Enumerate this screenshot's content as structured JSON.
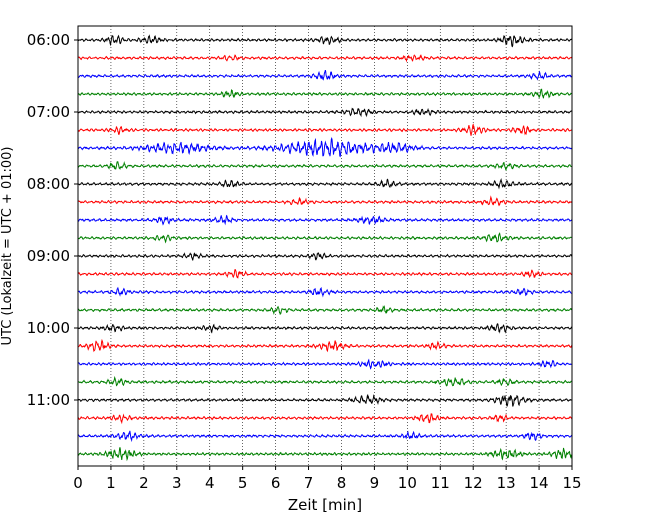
{
  "chart_data": {
    "type": "line",
    "title": "",
    "xlabel": "Zeit  [min]",
    "ylabel": "UTC (Lokalzeit = UTC + 01:00)",
    "xlim": [
      0,
      15
    ],
    "x_ticks": [
      "0",
      "1",
      "2",
      "3",
      "4",
      "5",
      "6",
      "7",
      "8",
      "9",
      "10",
      "11",
      "12",
      "13",
      "14",
      "15"
    ],
    "y_ticks": [
      {
        "label": "06:00",
        "row": 0
      },
      {
        "label": "07:00",
        "row": 4
      },
      {
        "label": "08:00",
        "row": 8
      },
      {
        "label": "09:00",
        "row": 12
      },
      {
        "label": "10:00",
        "row": 16
      },
      {
        "label": "11:00",
        "row": 20
      }
    ],
    "row_duration_min": 15,
    "grid": "vertical-dotted",
    "trace_colors": [
      "#000000",
      "#ff0000",
      "#0000ff",
      "#008000"
    ],
    "traces": [
      {
        "start": "06:00",
        "color": "#000000",
        "events": [
          {
            "t": 1.1,
            "amp": 0.45,
            "dur": 0.5
          },
          {
            "t": 2.2,
            "amp": 0.35,
            "dur": 0.6
          },
          {
            "t": 7.6,
            "amp": 0.35,
            "dur": 0.6
          },
          {
            "t": 13.2,
            "amp": 0.55,
            "dur": 0.7
          }
        ]
      },
      {
        "start": "06:15",
        "color": "#ff0000",
        "events": [
          {
            "t": 4.6,
            "amp": 0.25,
            "dur": 0.5
          },
          {
            "t": 10.2,
            "amp": 0.25,
            "dur": 0.6
          }
        ]
      },
      {
        "start": "06:30",
        "color": "#0000ff",
        "events": [
          {
            "t": 7.5,
            "amp": 0.45,
            "dur": 0.6
          },
          {
            "t": 14.0,
            "amp": 0.3,
            "dur": 0.5
          }
        ]
      },
      {
        "start": "06:45",
        "color": "#008000",
        "events": [
          {
            "t": 4.6,
            "amp": 0.3,
            "dur": 0.5
          },
          {
            "t": 14.1,
            "amp": 0.35,
            "dur": 0.6
          }
        ]
      },
      {
        "start": "07:00",
        "color": "#000000",
        "events": [
          {
            "t": 8.5,
            "amp": 0.35,
            "dur": 0.8
          },
          {
            "t": 10.5,
            "amp": 0.3,
            "dur": 0.6
          }
        ]
      },
      {
        "start": "07:15",
        "color": "#ff0000",
        "events": [
          {
            "t": 1.2,
            "amp": 0.3,
            "dur": 0.5
          },
          {
            "t": 12.0,
            "amp": 0.5,
            "dur": 0.6
          },
          {
            "t": 13.5,
            "amp": 0.4,
            "dur": 0.5
          }
        ]
      },
      {
        "start": "07:30",
        "color": "#0000ff",
        "events": [
          {
            "t": 3.0,
            "amp": 0.5,
            "dur": 2.0
          },
          {
            "t": 7.5,
            "amp": 0.9,
            "dur": 2.5
          },
          {
            "t": 9.6,
            "amp": 0.5,
            "dur": 1.2
          }
        ]
      },
      {
        "start": "07:45",
        "color": "#008000",
        "events": [
          {
            "t": 1.2,
            "amp": 0.35,
            "dur": 0.5
          },
          {
            "t": 13.0,
            "amp": 0.3,
            "dur": 0.6
          }
        ]
      },
      {
        "start": "08:00",
        "color": "#000000",
        "events": [
          {
            "t": 4.6,
            "amp": 0.35,
            "dur": 0.5
          },
          {
            "t": 9.4,
            "amp": 0.35,
            "dur": 0.5
          },
          {
            "t": 12.9,
            "amp": 0.4,
            "dur": 0.6
          }
        ]
      },
      {
        "start": "08:15",
        "color": "#ff0000",
        "events": [
          {
            "t": 6.7,
            "amp": 0.25,
            "dur": 0.6
          },
          {
            "t": 12.6,
            "amp": 0.35,
            "dur": 0.6
          }
        ]
      },
      {
        "start": "08:30",
        "color": "#0000ff",
        "events": [
          {
            "t": 2.6,
            "amp": 0.35,
            "dur": 0.5
          },
          {
            "t": 4.4,
            "amp": 0.4,
            "dur": 0.5
          },
          {
            "t": 8.9,
            "amp": 0.35,
            "dur": 0.8
          }
        ]
      },
      {
        "start": "08:45",
        "color": "#008000",
        "events": [
          {
            "t": 2.6,
            "amp": 0.35,
            "dur": 0.5
          },
          {
            "t": 12.7,
            "amp": 0.4,
            "dur": 0.7
          }
        ]
      },
      {
        "start": "09:00",
        "color": "#000000",
        "events": [
          {
            "t": 3.5,
            "amp": 0.3,
            "dur": 0.5
          },
          {
            "t": 7.3,
            "amp": 0.3,
            "dur": 0.5
          }
        ]
      },
      {
        "start": "09:15",
        "color": "#ff0000",
        "events": [
          {
            "t": 4.8,
            "amp": 0.35,
            "dur": 0.5
          },
          {
            "t": 13.8,
            "amp": 0.35,
            "dur": 0.5
          }
        ]
      },
      {
        "start": "09:30",
        "color": "#0000ff",
        "events": [
          {
            "t": 1.3,
            "amp": 0.3,
            "dur": 0.5
          },
          {
            "t": 7.3,
            "amp": 0.35,
            "dur": 0.6
          },
          {
            "t": 13.5,
            "amp": 0.3,
            "dur": 0.5
          }
        ]
      },
      {
        "start": "09:45",
        "color": "#008000",
        "events": [
          {
            "t": 6.1,
            "amp": 0.35,
            "dur": 0.5
          },
          {
            "t": 9.3,
            "amp": 0.3,
            "dur": 0.5
          }
        ]
      },
      {
        "start": "10:00",
        "color": "#000000",
        "events": [
          {
            "t": 1.1,
            "amp": 0.35,
            "dur": 0.5
          },
          {
            "t": 4.0,
            "amp": 0.3,
            "dur": 0.5
          },
          {
            "t": 12.8,
            "amp": 0.4,
            "dur": 0.6
          }
        ]
      },
      {
        "start": "10:15",
        "color": "#ff0000",
        "events": [
          {
            "t": 0.6,
            "amp": 0.55,
            "dur": 0.6
          },
          {
            "t": 7.7,
            "amp": 0.45,
            "dur": 0.8
          },
          {
            "t": 10.9,
            "amp": 0.35,
            "dur": 0.5
          }
        ]
      },
      {
        "start": "10:30",
        "color": "#0000ff",
        "events": [
          {
            "t": 9.0,
            "amp": 0.35,
            "dur": 0.8
          },
          {
            "t": 14.3,
            "amp": 0.3,
            "dur": 0.5
          }
        ]
      },
      {
        "start": "10:45",
        "color": "#008000",
        "events": [
          {
            "t": 1.2,
            "amp": 0.35,
            "dur": 0.5
          },
          {
            "t": 11.4,
            "amp": 0.35,
            "dur": 0.8
          },
          {
            "t": 13.0,
            "amp": 0.3,
            "dur": 0.5
          }
        ]
      },
      {
        "start": "11:00",
        "color": "#000000",
        "events": [
          {
            "t": 8.8,
            "amp": 0.4,
            "dur": 0.8
          },
          {
            "t": 13.1,
            "amp": 0.65,
            "dur": 0.8
          }
        ]
      },
      {
        "start": "11:15",
        "color": "#ff0000",
        "events": [
          {
            "t": 1.3,
            "amp": 0.3,
            "dur": 0.5
          },
          {
            "t": 10.6,
            "amp": 0.45,
            "dur": 0.6
          },
          {
            "t": 12.8,
            "amp": 0.3,
            "dur": 0.5
          }
        ]
      },
      {
        "start": "11:30",
        "color": "#0000ff",
        "events": [
          {
            "t": 1.5,
            "amp": 0.45,
            "dur": 0.6
          },
          {
            "t": 10.1,
            "amp": 0.3,
            "dur": 0.5
          },
          {
            "t": 13.8,
            "amp": 0.35,
            "dur": 0.5
          }
        ]
      },
      {
        "start": "11:45",
        "color": "#008000",
        "events": [
          {
            "t": 1.3,
            "amp": 0.55,
            "dur": 0.8
          },
          {
            "t": 13.0,
            "amp": 0.45,
            "dur": 0.8
          },
          {
            "t": 14.7,
            "amp": 0.5,
            "dur": 0.6
          }
        ]
      }
    ]
  }
}
